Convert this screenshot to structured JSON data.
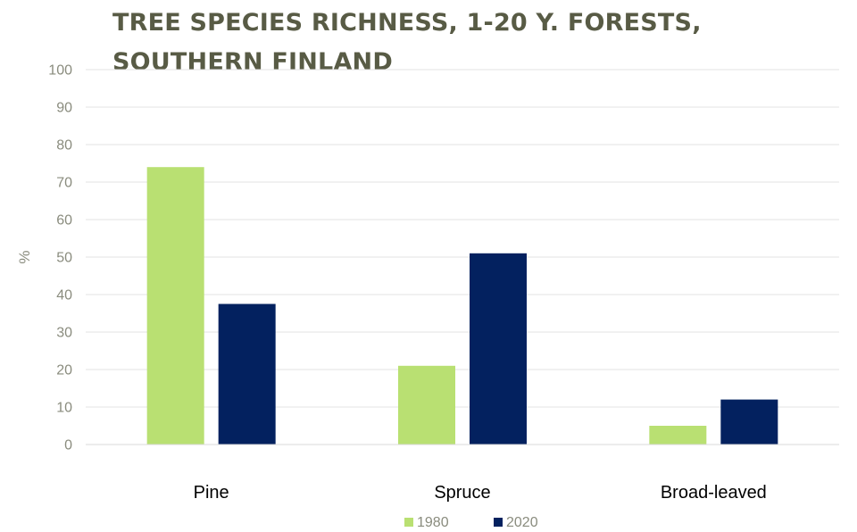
{
  "chart_data": {
    "type": "bar",
    "title": "TREE SPECIES RICHNESS, 1-20 Y. FORESTS, SOUTHERN FINLAND",
    "xlabel": "",
    "ylabel": "%",
    "categories": [
      "Pine",
      "Spruce",
      "Broad-leaved"
    ],
    "series": [
      {
        "name": "1980",
        "color": "#b9e072",
        "values": [
          74,
          21,
          5
        ]
      },
      {
        "name": "2020",
        "color": "#03215f",
        "values": [
          37.5,
          51,
          12
        ]
      }
    ],
    "ylim": [
      0,
      100
    ],
    "yticks": [
      0,
      10,
      20,
      30,
      40,
      50,
      60,
      70,
      80,
      90,
      100
    ],
    "grid": true,
    "legend_position": "bottom-center"
  }
}
